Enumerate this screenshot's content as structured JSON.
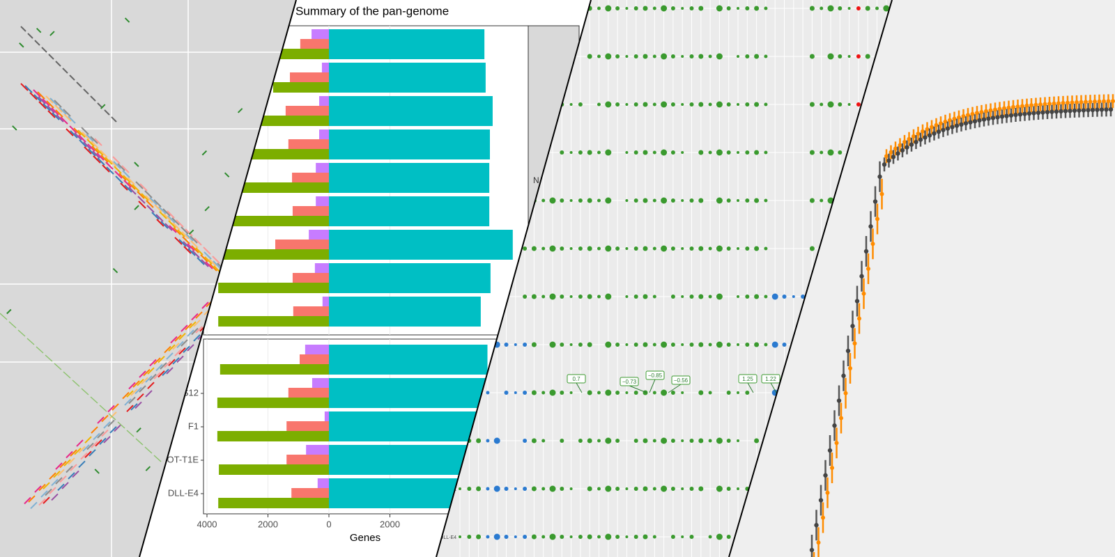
{
  "chart_data": {
    "type": "bar",
    "title": "Summary of the pan-genome",
    "xlabel": "Genes",
    "categories": [
      null,
      null,
      null,
      null,
      null,
      null,
      null,
      null,
      null,
      null,
      "S12",
      "F1",
      "DOT-T1E",
      "DLL-E4"
    ],
    "series": [
      {
        "color": "#c77cff",
        "values": [
          -570,
          -230,
          -320,
          -320,
          -430,
          -430,
          -660,
          -460,
          -210,
          -780,
          -550,
          -140,
          -750,
          -370
        ]
      },
      {
        "color": "#f8766d",
        "values": [
          -940,
          -1280,
          -1420,
          -1330,
          -1210,
          -1190,
          -1760,
          -1190,
          -1170,
          -960,
          -1330,
          -1390,
          -1390,
          -1230
        ]
      },
      {
        "color": "#7cae00",
        "values": [
          -1650,
          -1830,
          -2330,
          -2670,
          -3020,
          -3180,
          -3470,
          -3630,
          -3630,
          -3570,
          -3660,
          -3660,
          -3610,
          -3630
        ]
      },
      {
        "color": "#00bfc4",
        "values": [
          5100,
          5140,
          5370,
          5280,
          5260,
          5260,
          6030,
          5300,
          4980,
          5200,
          5200,
          5200,
          5200,
          5200
        ]
      }
    ],
    "xlim": [
      -4110,
      8200
    ],
    "xticks": [
      {
        "value": -4000,
        "label": "4000"
      },
      {
        "value": -2000,
        "label": "2000"
      },
      0,
      2000
    ],
    "grid": true
  },
  "dot_plot": {
    "annotations": [
      "0.7",
      "−0.73",
      "−0.85",
      "−0.56",
      "1.25",
      "1.22"
    ],
    "row_labels": [
      "F1",
      "DLL-E4"
    ],
    "strip_text": "N"
  }
}
